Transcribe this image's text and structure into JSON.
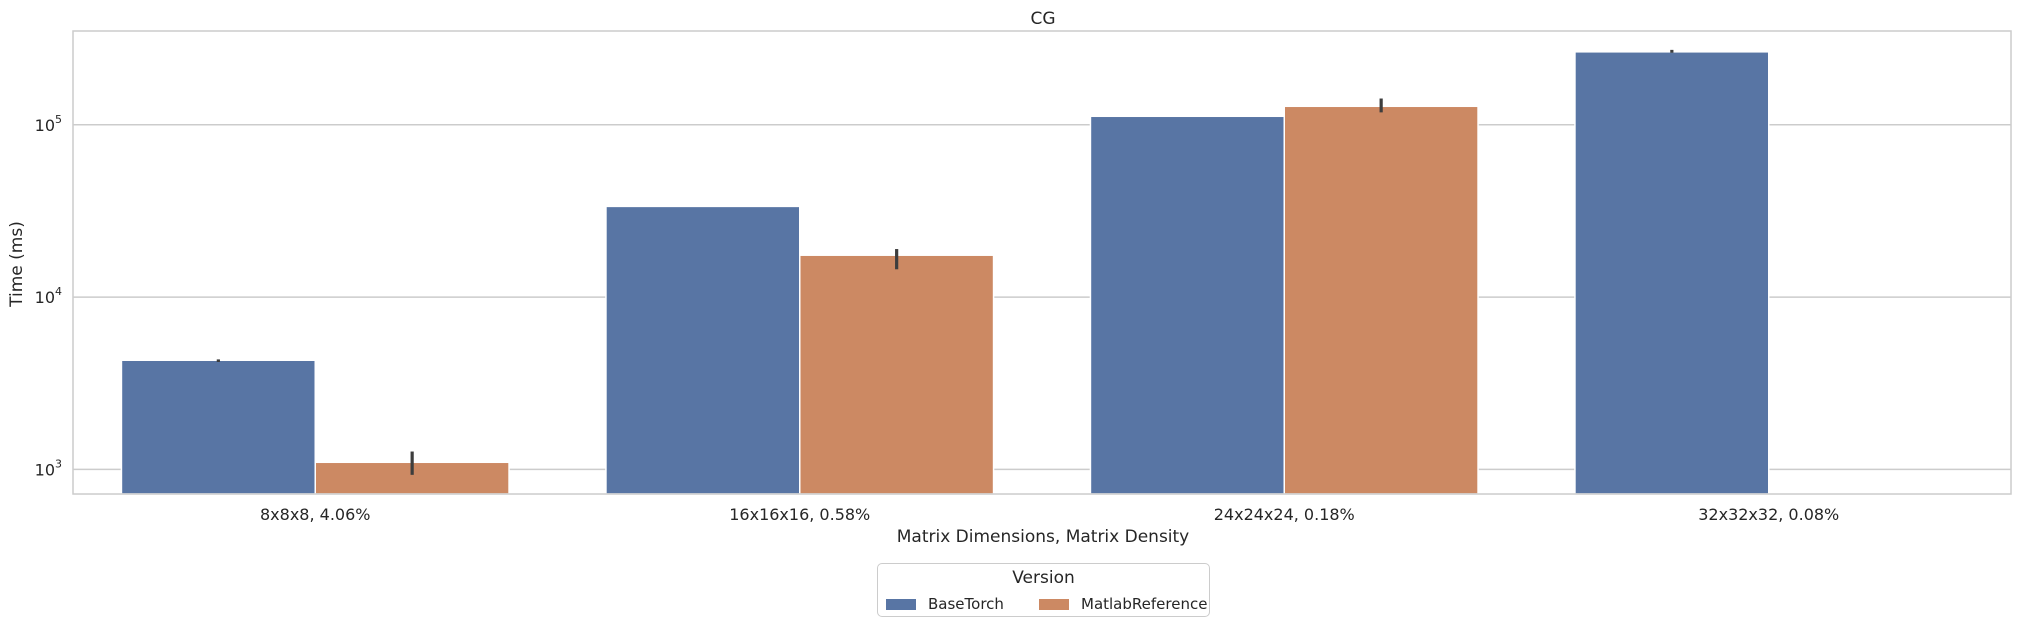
{
  "chart_data": {
    "type": "bar",
    "title": "CG",
    "xlabel": "Matrix Dimensions, Matrix Density",
    "ylabel": "Time (ms)",
    "yscale": "log",
    "ylim": [
      720,
      350000
    ],
    "yticks": [
      {
        "value": 1000,
        "base": "10",
        "exp": "3"
      },
      {
        "value": 10000,
        "base": "10",
        "exp": "4"
      },
      {
        "value": 100000,
        "base": "10",
        "exp": "5"
      }
    ],
    "grid": "horizontal",
    "categories": [
      "8x8x8, 4.06%",
      "16x16x16, 0.58%",
      "24x24x24, 0.18%",
      "32x32x32, 0.08%"
    ],
    "series": [
      {
        "name": "BaseTorch",
        "color": "#5875a4",
        "values": [
          4300,
          33600,
          112000,
          265000
        ],
        "error_low": [
          4200,
          33600,
          112000,
          262000
        ],
        "error_high": [
          4350,
          33600,
          112000,
          272000
        ]
      },
      {
        "name": "MatlabReference",
        "color": "#cc8963",
        "values": [
          1100,
          17500,
          128000,
          null
        ],
        "error_low": [
          930,
          14500,
          118000,
          null
        ],
        "error_high": [
          1270,
          19000,
          142000,
          null
        ]
      }
    ],
    "legend": {
      "title": "Version",
      "placement": "bottom-center"
    }
  }
}
